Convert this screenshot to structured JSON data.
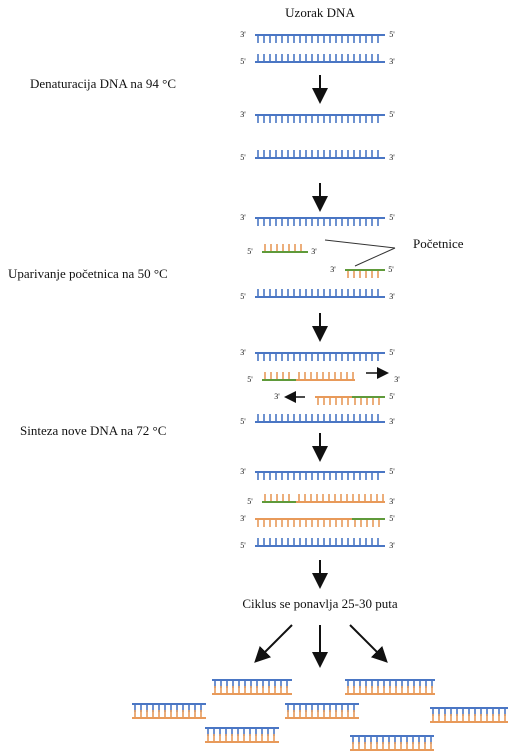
{
  "title": "Uzorak DNA",
  "steps": [
    "Denaturacija DNA na 94 °C",
    "Uparivanje početnica na 50 °C",
    "Sinteza nove DNA na 72 °C"
  ],
  "primer_label": "Početnice",
  "cycle_label": "Ciklus se ponavlja 25-30 puta",
  "rows": [
    {
      "left": "3'",
      "right": "5'"
    },
    {
      "left": "5'",
      "right": "3'"
    },
    {
      "left": "3'",
      "right": "5'"
    },
    {
      "left": "5'",
      "right": "3'"
    },
    {
      "left": "3'",
      "right": "5'"
    },
    {
      "left": "5'",
      "right": "3'"
    },
    {
      "left": "3'",
      "right": "5'"
    },
    {
      "left": "5'",
      "right": "3'"
    },
    {
      "left": "3'",
      "right": "5'"
    },
    {
      "left": "5'",
      "right": "3'"
    },
    {
      "left": "3'",
      "right": "5'"
    },
    {
      "left": "5'",
      "right": "3'"
    },
    {
      "left": "3'",
      "right": "5'"
    },
    {
      "left": "5'",
      "right": "3'"
    },
    {
      "left": "3'",
      "right": "5'"
    },
    {
      "left": "5'",
      "right": "3'"
    }
  ]
}
